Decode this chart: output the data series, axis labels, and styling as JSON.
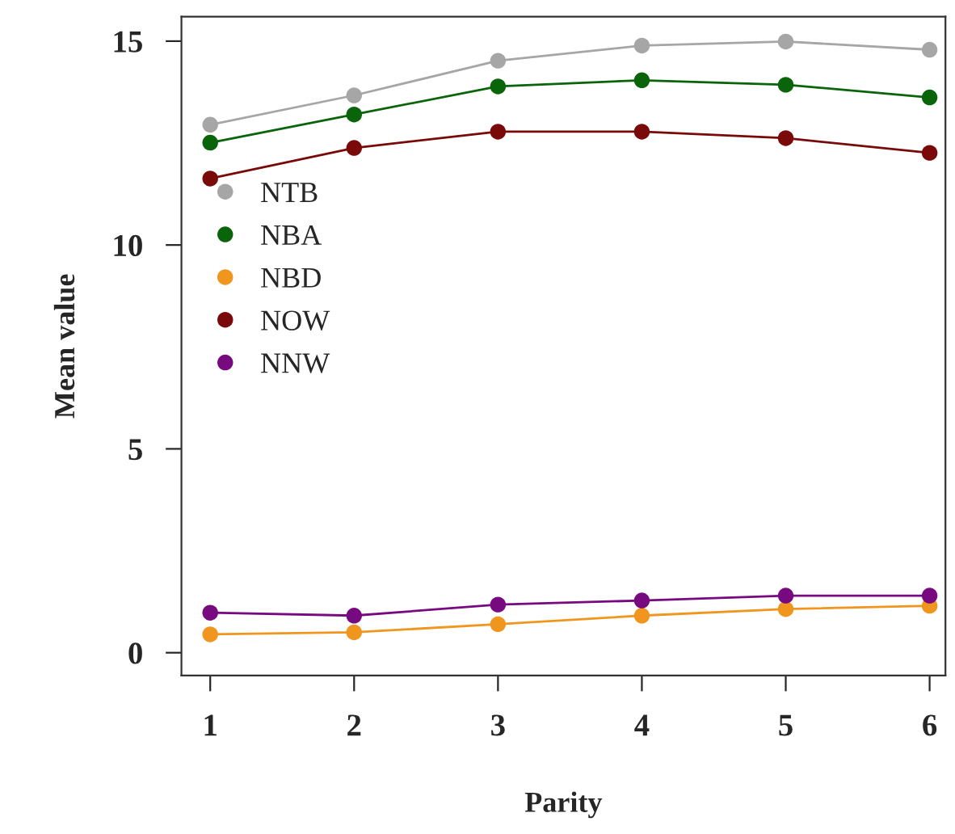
{
  "chart_data": {
    "type": "line",
    "xlabel": "Parity",
    "ylabel": "Mean value",
    "x": [
      1,
      2,
      3,
      4,
      5,
      6
    ],
    "series": [
      {
        "name": "NTB",
        "color": "#a6a6a6",
        "values": [
          12.95,
          13.67,
          14.52,
          14.89,
          14.99,
          14.79
        ]
      },
      {
        "name": "NBA",
        "color": "#0a640a",
        "values": [
          12.51,
          13.2,
          13.89,
          14.04,
          13.93,
          13.62
        ]
      },
      {
        "name": "NBD",
        "color": "#f0961e",
        "values": [
          0.45,
          0.5,
          0.7,
          0.91,
          1.07,
          1.15
        ]
      },
      {
        "name": "NOW",
        "color": "#7a0a0a",
        "values": [
          11.63,
          12.38,
          12.78,
          12.78,
          12.62,
          12.26
        ]
      },
      {
        "name": "NNW",
        "color": "#780a80",
        "values": [
          0.98,
          0.91,
          1.18,
          1.28,
          1.4,
          1.4
        ]
      }
    ],
    "xlim": [
      0.8,
      6.11
    ],
    "ylim": [
      -0.56,
      15.6
    ],
    "xticks": [
      1,
      2,
      3,
      4,
      5,
      6
    ],
    "yticks": [
      0,
      5,
      10,
      15
    ],
    "grid": false,
    "legend": "left",
    "marker": "circle",
    "line_style": "solid"
  }
}
